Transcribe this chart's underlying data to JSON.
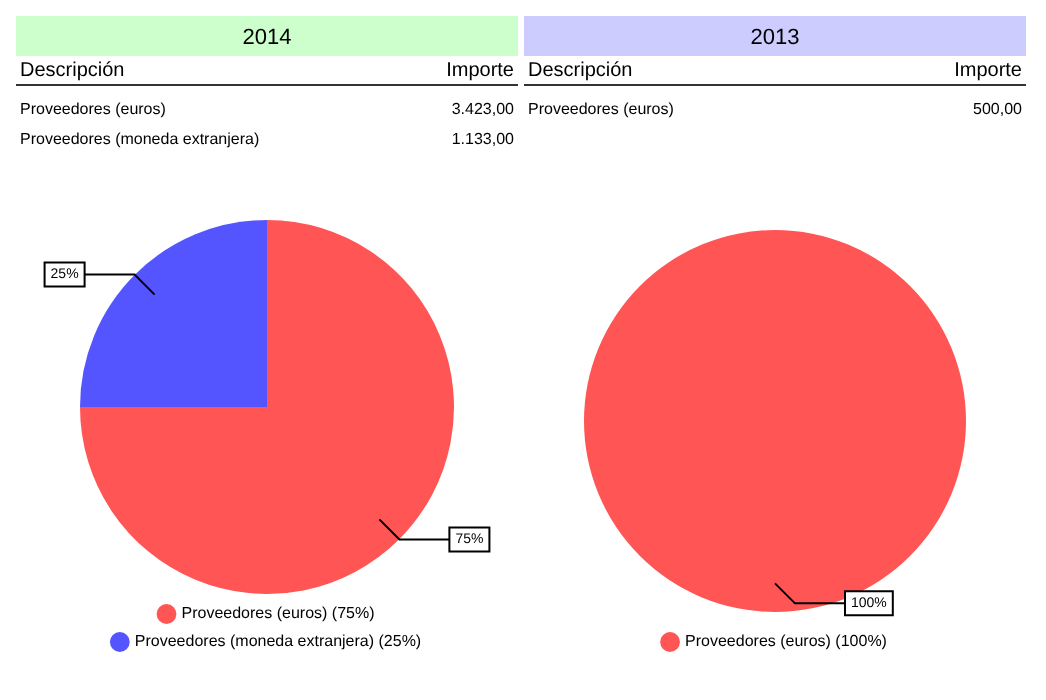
{
  "chart_data": [
    {
      "type": "pie",
      "title": "2014",
      "categories": [
        "Proveedores (euros) (75%)",
        "Proveedores (moneda extranjera) (25%)"
      ],
      "values": [
        75,
        25
      ],
      "colors": [
        "#ff5555",
        "#5555ff"
      ],
      "value_labels": [
        "75%",
        "25%"
      ],
      "legend": "bottom",
      "annotations": [
        "Descripción",
        "Importe",
        "Proveedores (euros)",
        "3.423,00",
        "Proveedores (moneda extranjera)",
        "1.133,00"
      ]
    },
    {
      "type": "pie",
      "title": "2013",
      "categories": [
        "Proveedores (euros) (100%)"
      ],
      "values": [
        100
      ],
      "colors": [
        "#ff5555"
      ],
      "value_labels": [
        "100%"
      ],
      "legend": "bottom",
      "annotations": [
        "Descripción",
        "Importe",
        "Proveedores (euros)",
        "500,00"
      ]
    }
  ]
}
